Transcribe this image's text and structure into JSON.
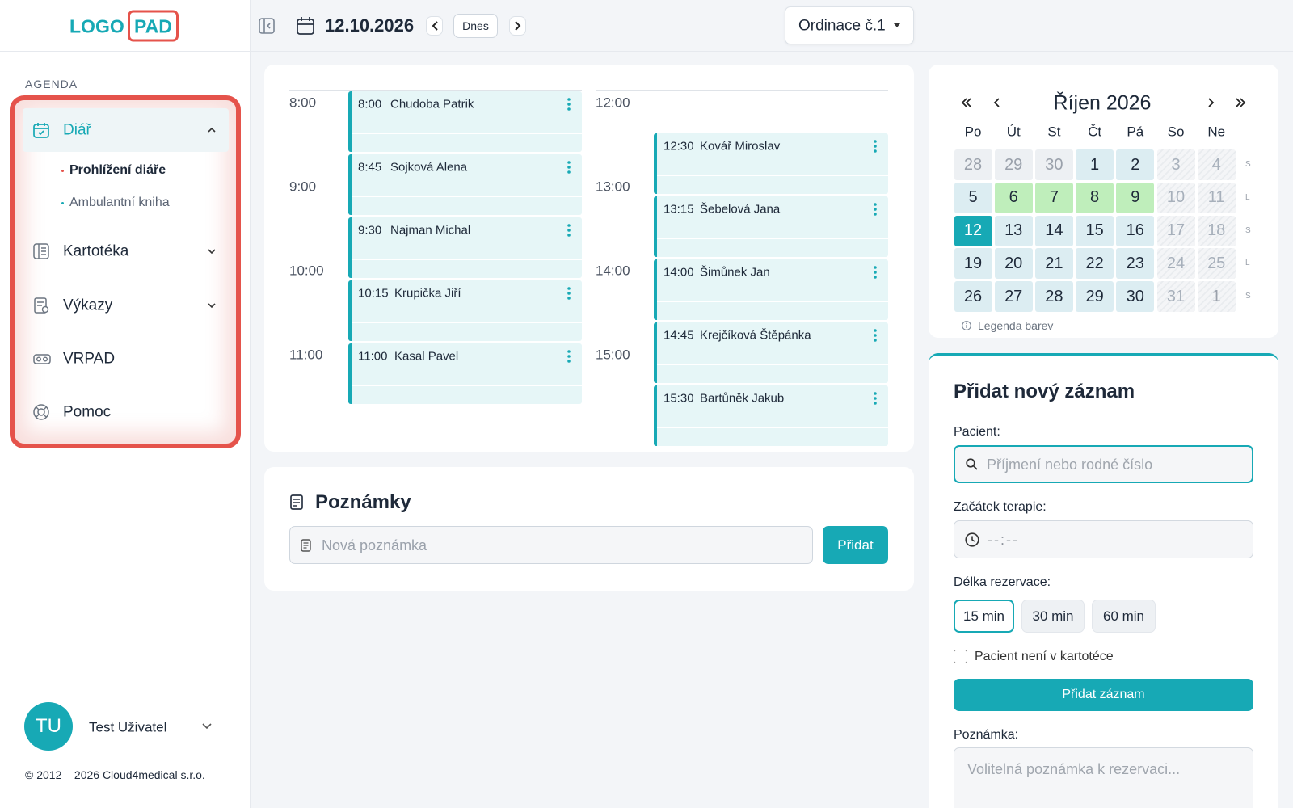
{
  "sidebar": {
    "logo": {
      "left": "LOGO",
      "right": "PAD"
    },
    "section": "AGENDA",
    "nav": [
      {
        "label": "Diář",
        "children": [
          "Prohlížení diáře",
          "Ambulantní kniha"
        ]
      },
      {
        "label": "Kartotéka"
      },
      {
        "label": "Výkazy"
      },
      {
        "label": "VRPAD"
      },
      {
        "label": "Pomoc"
      }
    ],
    "user": {
      "initials": "TU",
      "name": "Test Uživatel"
    },
    "copyright": "© 2012 – 2026 Cloud4medical s.r.o."
  },
  "topbar": {
    "date": "12.10.2026",
    "today_button": "Dnes",
    "office": "Ordinace č.1"
  },
  "schedule": {
    "columns": [
      {
        "hours": [
          "8:00",
          "9:00",
          "10:00",
          "11:00"
        ],
        "appointments": [
          {
            "time": "8:00",
            "name": "Chudoba Patrik"
          },
          {
            "time": "8:45",
            "name": "Sojková Alena"
          },
          {
            "time": "9:30",
            "name": "Najman Michal"
          },
          {
            "time": "10:15",
            "name": "Krupička Jiří"
          },
          {
            "time": "11:00",
            "name": "Kasal Pavel"
          }
        ]
      },
      {
        "hours": [
          "12:00",
          "13:00",
          "14:00",
          "15:00"
        ],
        "appointments": [
          {
            "time": "12:30",
            "name": "Kovář Miroslav"
          },
          {
            "time": "13:15",
            "name": "Šebelová Jana"
          },
          {
            "time": "14:00",
            "name": "Šimůnek Jan"
          },
          {
            "time": "14:45",
            "name": "Krejčíková Štěpánka"
          },
          {
            "time": "15:30",
            "name": "Bartůněk Jakub"
          }
        ]
      }
    ]
  },
  "notes": {
    "title": "Poznámky",
    "placeholder": "Nová poznámka",
    "button": "Přidat"
  },
  "calendar": {
    "title": "Říjen 2026",
    "weekdays": [
      "Po",
      "Út",
      "St",
      "Čt",
      "Pá",
      "So",
      "Ne"
    ],
    "weeks": [
      [
        28,
        29,
        30,
        1,
        2,
        3,
        4
      ],
      [
        5,
        6,
        7,
        8,
        9,
        10,
        11
      ],
      [
        12,
        13,
        14,
        15,
        16,
        17,
        18
      ],
      [
        19,
        20,
        21,
        22,
        23,
        24,
        25
      ],
      [
        26,
        27,
        28,
        29,
        30,
        31,
        1
      ]
    ],
    "week_labels": [
      "S",
      "L",
      "S",
      "L",
      "S"
    ],
    "selected_day": 12,
    "marked_days": [
      6,
      7,
      8,
      9
    ],
    "legend": "Legenda barev"
  },
  "form": {
    "title": "Přidat nový záznam",
    "patient_label": "Pacient:",
    "patient_placeholder": "Příjmení nebo rodné číslo",
    "start_label": "Začátek terapie:",
    "start_placeholder": "--:--",
    "duration_label": "Délka rezervace:",
    "durations": [
      "15 min",
      "30 min",
      "60 min"
    ],
    "selected_duration": 0,
    "checkbox_label": "Pacient není v kartotéce",
    "submit": "Přidat záznam",
    "note_label": "Poznámka:",
    "note_placeholder": "Volitelná poznámka k rezervaci..."
  }
}
